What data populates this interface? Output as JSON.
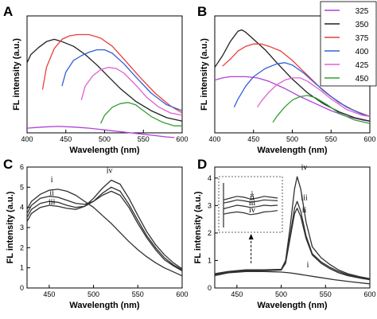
{
  "chart_data": [
    {
      "panel": "A",
      "type": "line",
      "xlabel": "Wavelength (nm)",
      "ylabel": "FL intensity (a.u.)",
      "xlim": [
        400,
        600
      ],
      "xticks": [
        400,
        450,
        500,
        550,
        600
      ],
      "ylim": [
        0,
        1
      ],
      "yticks_shown": false,
      "series": [
        {
          "name": "325",
          "color": "#b040d8",
          "x": [
            400,
            420,
            440,
            460,
            480,
            500,
            520,
            540,
            560,
            580,
            590
          ],
          "y": [
            0.04,
            0.05,
            0.055,
            0.05,
            0.04,
            0.025,
            0.01,
            -0.005,
            -0.02,
            -0.035,
            -0.04
          ]
        },
        {
          "name": "350",
          "color": "#202020",
          "x": [
            400,
            405,
            415,
            425,
            435,
            445,
            460,
            475,
            490,
            505,
            520,
            540,
            560,
            580,
            600
          ],
          "y": [
            0.6,
            0.67,
            0.73,
            0.78,
            0.8,
            0.78,
            0.74,
            0.67,
            0.58,
            0.48,
            0.38,
            0.27,
            0.19,
            0.13,
            0.1
          ]
        },
        {
          "name": "375",
          "color": "#e8403a",
          "x": [
            420,
            425,
            435,
            445,
            455,
            465,
            480,
            495,
            510,
            525,
            545,
            565,
            585,
            600
          ],
          "y": [
            0.37,
            0.56,
            0.72,
            0.8,
            0.83,
            0.84,
            0.84,
            0.81,
            0.74,
            0.63,
            0.48,
            0.34,
            0.23,
            0.17
          ]
        },
        {
          "name": "400",
          "color": "#3060d8",
          "x": [
            445,
            450,
            460,
            470,
            480,
            490,
            500,
            510,
            525,
            540,
            560,
            580,
            600
          ],
          "y": [
            0.4,
            0.52,
            0.62,
            0.66,
            0.69,
            0.71,
            0.71,
            0.68,
            0.59,
            0.48,
            0.34,
            0.24,
            0.19
          ]
        },
        {
          "name": "425",
          "color": "#e060d0",
          "x": [
            470,
            475,
            485,
            495,
            505,
            515,
            525,
            540,
            555,
            570,
            585,
            600
          ],
          "y": [
            0.28,
            0.4,
            0.49,
            0.54,
            0.56,
            0.55,
            0.51,
            0.41,
            0.3,
            0.22,
            0.17,
            0.15
          ]
        },
        {
          "name": "450",
          "color": "#30a030",
          "x": [
            495,
            500,
            510,
            520,
            530,
            540,
            550,
            560,
            575,
            590,
            600
          ],
          "y": [
            0.08,
            0.15,
            0.22,
            0.25,
            0.26,
            0.24,
            0.19,
            0.14,
            0.09,
            0.06,
            0.06
          ]
        }
      ]
    },
    {
      "panel": "B",
      "type": "line",
      "xlabel": "Wavelength (nm)",
      "ylabel": "FL intensity (a.u.)",
      "xlim": [
        400,
        600
      ],
      "xticks": [
        400,
        450,
        500,
        550,
        600
      ],
      "ylim": [
        0,
        1
      ],
      "yticks_shown": false,
      "legend": {
        "position": "top-right",
        "entries": [
          "325",
          "350",
          "375",
          "400",
          "425",
          "450"
        ]
      },
      "series": [
        {
          "name": "325",
          "color": "#b040d8",
          "x": [
            400,
            410,
            420,
            430,
            440,
            455,
            470,
            490,
            510,
            530,
            550,
            570,
            590,
            600
          ],
          "y": [
            0.45,
            0.47,
            0.48,
            0.48,
            0.48,
            0.47,
            0.44,
            0.38,
            0.31,
            0.25,
            0.19,
            0.14,
            0.11,
            0.1
          ]
        },
        {
          "name": "350",
          "color": "#202020",
          "x": [
            400,
            410,
            420,
            430,
            435,
            440,
            450,
            465,
            480,
            500,
            520,
            540,
            560,
            580,
            600
          ],
          "y": [
            0.56,
            0.66,
            0.78,
            0.87,
            0.88,
            0.86,
            0.8,
            0.71,
            0.6,
            0.46,
            0.34,
            0.25,
            0.18,
            0.13,
            0.1
          ]
        },
        {
          "name": "375",
          "color": "#e8403a",
          "x": [
            410,
            420,
            430,
            440,
            450,
            460,
            470,
            485,
            500,
            520,
            540,
            560,
            580,
            600
          ],
          "y": [
            0.57,
            0.63,
            0.7,
            0.74,
            0.76,
            0.76,
            0.74,
            0.7,
            0.62,
            0.49,
            0.36,
            0.26,
            0.19,
            0.14
          ]
        },
        {
          "name": "400",
          "color": "#3060d8",
          "x": [
            425,
            430,
            440,
            450,
            465,
            480,
            490,
            500,
            515,
            530,
            550,
            570,
            590,
            600
          ],
          "y": [
            0.22,
            0.29,
            0.4,
            0.48,
            0.55,
            0.59,
            0.6,
            0.58,
            0.51,
            0.42,
            0.31,
            0.22,
            0.16,
            0.14
          ]
        },
        {
          "name": "425",
          "color": "#e060d0",
          "x": [
            455,
            460,
            470,
            480,
            490,
            500,
            510,
            520,
            535,
            550,
            570,
            590,
            600
          ],
          "y": [
            0.22,
            0.27,
            0.35,
            0.41,
            0.45,
            0.47,
            0.47,
            0.44,
            0.37,
            0.29,
            0.2,
            0.15,
            0.14
          ]
        },
        {
          "name": "450",
          "color": "#30a030",
          "x": [
            475,
            480,
            490,
            500,
            510,
            520,
            530,
            545,
            560,
            580,
            600
          ],
          "y": [
            0.09,
            0.14,
            0.22,
            0.28,
            0.31,
            0.32,
            0.3,
            0.24,
            0.17,
            0.11,
            0.08
          ]
        }
      ]
    },
    {
      "panel": "C",
      "type": "line",
      "xlabel": "Wavelength (nm)",
      "ylabel": "FL intensity (a.u.)",
      "xlim": [
        425,
        600
      ],
      "xticks": [
        450,
        500,
        550,
        600
      ],
      "ylim": [
        0,
        6
      ],
      "yticks": [
        0,
        1,
        2,
        3,
        4,
        5,
        6
      ],
      "series": [
        {
          "name": "i",
          "color": "#303030",
          "x": [
            425,
            430,
            440,
            450,
            460,
            470,
            480,
            490,
            500,
            510,
            520,
            530,
            540,
            550,
            560,
            570,
            580,
            590,
            600
          ],
          "y": [
            3.9,
            4.3,
            4.65,
            4.85,
            4.9,
            4.8,
            4.6,
            4.3,
            4.0,
            3.6,
            3.2,
            2.75,
            2.3,
            1.9,
            1.55,
            1.25,
            1.0,
            0.8,
            0.6
          ]
        },
        {
          "name": "ii",
          "color": "#303030",
          "x": [
            425,
            430,
            440,
            450,
            460,
            470,
            480,
            490,
            500,
            510,
            520,
            530,
            540,
            550,
            560,
            570,
            580,
            590,
            600
          ],
          "y": [
            3.7,
            4.1,
            4.45,
            4.55,
            4.5,
            4.35,
            4.2,
            4.15,
            4.3,
            4.6,
            4.8,
            4.6,
            4.0,
            3.2,
            2.5,
            1.9,
            1.4,
            1.1,
            0.85
          ]
        },
        {
          "name": "iii",
          "color": "#303030",
          "x": [
            425,
            430,
            440,
            450,
            460,
            470,
            480,
            490,
            500,
            510,
            520,
            530,
            540,
            550,
            560,
            570,
            580,
            590,
            600
          ],
          "y": [
            3.5,
            3.9,
            4.2,
            4.3,
            4.25,
            4.1,
            4.0,
            4.05,
            4.3,
            4.7,
            5.0,
            4.8,
            4.15,
            3.35,
            2.6,
            2.0,
            1.5,
            1.15,
            0.9
          ]
        },
        {
          "name": "iv",
          "color": "#303030",
          "x": [
            425,
            430,
            440,
            450,
            460,
            470,
            480,
            490,
            500,
            510,
            520,
            530,
            540,
            550,
            560,
            570,
            580,
            590,
            600
          ],
          "y": [
            3.3,
            3.7,
            4.0,
            4.1,
            4.05,
            3.95,
            3.9,
            4.05,
            4.45,
            4.95,
            5.35,
            5.15,
            4.45,
            3.6,
            2.8,
            2.15,
            1.65,
            1.25,
            0.95
          ]
        }
      ],
      "curve_labels": [
        {
          "text": "i",
          "x": 453,
          "y": 5.25
        },
        {
          "text": "ii",
          "x": 453,
          "y": 4.6
        },
        {
          "text": "iii",
          "x": 453,
          "y": 4.15
        },
        {
          "text": "iv",
          "x": 518,
          "y": 5.7
        }
      ]
    },
    {
      "panel": "D",
      "type": "line",
      "xlabel": "Wavelength (nm)",
      "ylabel": "FL intensity (a.u.)",
      "xlim": [
        425,
        600
      ],
      "xticks": [
        450,
        500,
        550,
        600
      ],
      "ylim": [
        0,
        4.4
      ],
      "yticks": [
        0,
        1,
        2,
        3,
        4
      ],
      "series": [
        {
          "name": "i",
          "color": "#303030",
          "x": [
            425,
            440,
            460,
            480,
            500,
            510,
            520,
            540,
            560,
            580,
            600
          ],
          "y": [
            0.45,
            0.55,
            0.6,
            0.6,
            0.58,
            0.55,
            0.5,
            0.4,
            0.3,
            0.22,
            0.15
          ]
        },
        {
          "name": "ii",
          "color": "#303030",
          "x": [
            425,
            440,
            460,
            480,
            500,
            505,
            510,
            515,
            518,
            522,
            528,
            535,
            545,
            555,
            565,
            575,
            590,
            600
          ],
          "y": [
            0.48,
            0.56,
            0.62,
            0.63,
            0.65,
            0.9,
            1.8,
            2.7,
            2.9,
            2.6,
            1.8,
            1.2,
            0.9,
            0.7,
            0.55,
            0.45,
            0.35,
            0.3
          ]
        },
        {
          "name": "iii",
          "color": "#303030",
          "x": [
            425,
            440,
            460,
            480,
            500,
            505,
            510,
            515,
            518,
            522,
            528,
            535,
            545,
            555,
            565,
            575,
            590,
            600
          ],
          "y": [
            0.5,
            0.58,
            0.64,
            0.64,
            0.66,
            0.95,
            1.9,
            2.9,
            3.15,
            2.8,
            1.9,
            1.25,
            0.95,
            0.75,
            0.6,
            0.48,
            0.37,
            0.32
          ]
        },
        {
          "name": "iv",
          "color": "#303030",
          "x": [
            425,
            440,
            460,
            480,
            500,
            505,
            510,
            515,
            518,
            522,
            528,
            535,
            545,
            555,
            565,
            575,
            590,
            600
          ],
          "y": [
            0.52,
            0.6,
            0.66,
            0.66,
            0.68,
            1.0,
            2.2,
            3.6,
            4.05,
            3.6,
            2.4,
            1.5,
            1.1,
            0.85,
            0.65,
            0.52,
            0.4,
            0.34
          ]
        }
      ],
      "curve_labels": [
        {
          "text": "i",
          "x": 530,
          "y": 0.75
        },
        {
          "text": "ii",
          "x": 526,
          "y": 2.75
        },
        {
          "text": "iii",
          "x": 526,
          "y": 3.2
        },
        {
          "text": "iv",
          "x": 526,
          "y": 4.3
        }
      ],
      "inset": {
        "labels": [
          "i",
          "ii",
          "iii",
          "iv"
        ],
        "series": [
          {
            "name": "i",
            "y": [
              0.62,
              0.66,
              0.7,
              0.68,
              0.64,
              0.66,
              0.7,
              0.68,
              0.66
            ]
          },
          {
            "name": "ii",
            "y": [
              0.55,
              0.58,
              0.62,
              0.6,
              0.57,
              0.59,
              0.62,
              0.61,
              0.6
            ]
          },
          {
            "name": "iii",
            "y": [
              0.42,
              0.46,
              0.5,
              0.48,
              0.45,
              0.47,
              0.5,
              0.49,
              0.5
            ]
          },
          {
            "name": "iv",
            "y": [
              0.3,
              0.33,
              0.35,
              0.33,
              0.29,
              0.31,
              0.35,
              0.36,
              0.38
            ]
          }
        ]
      }
    }
  ]
}
